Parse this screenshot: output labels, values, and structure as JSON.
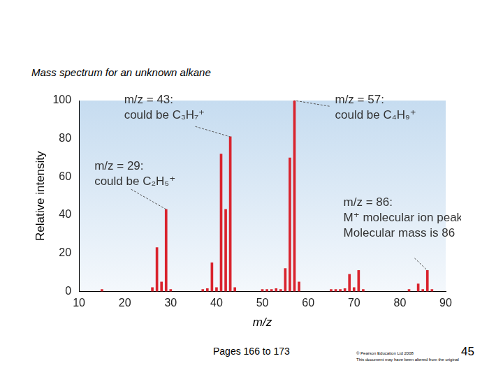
{
  "slide": {
    "heading": "Mass spectrum for an unknown alkane",
    "footer": {
      "pages": "Pages 166 to 173",
      "copyright": "© Pearson Education Ltd 2008",
      "notice": "This document may have been altered from the original",
      "slide_number": "45"
    }
  },
  "chart_data": {
    "type": "bar",
    "x_label": "m/z",
    "y_label": "Relative intensity",
    "x": [
      15,
      26,
      27,
      28,
      29,
      30,
      37,
      38,
      39,
      40,
      41,
      42,
      43,
      44,
      50,
      51,
      52,
      53,
      54,
      55,
      56,
      57,
      58,
      65,
      66,
      67,
      68,
      69,
      70,
      71,
      72,
      82,
      84,
      85,
      86,
      87
    ],
    "values": [
      1,
      2,
      23,
      5,
      43,
      1,
      1,
      1.5,
      15,
      2,
      72,
      43,
      81,
      2,
      1,
      1,
      1,
      1.5,
      1,
      12,
      70,
      100,
      5,
      1,
      1,
      1,
      1.5,
      9,
      2,
      11,
      1,
      1,
      4,
      1,
      11,
      1
    ],
    "color": "#d9232d",
    "xlim": [
      10,
      90
    ],
    "xticks": [
      10,
      20,
      30,
      40,
      50,
      60,
      70,
      80,
      90
    ],
    "ylim": [
      0,
      100
    ],
    "yticks": [
      0,
      20,
      40,
      60,
      80,
      100
    ],
    "grid": false,
    "annotations": [
      {
        "x": 43,
        "text": [
          "m/z = 43:",
          "could be C₃H₇⁺"
        ]
      },
      {
        "x": 57,
        "text": [
          "m/z = 57:",
          "could be C₄H₉⁺"
        ]
      },
      {
        "x": 29,
        "text": [
          "m/z = 29:",
          "could be C₂H₅⁺"
        ]
      },
      {
        "x": 86,
        "text": [
          "m/z = 86:",
          "M⁺ molecular ion peak",
          "Molecular mass is 86"
        ]
      }
    ]
  }
}
